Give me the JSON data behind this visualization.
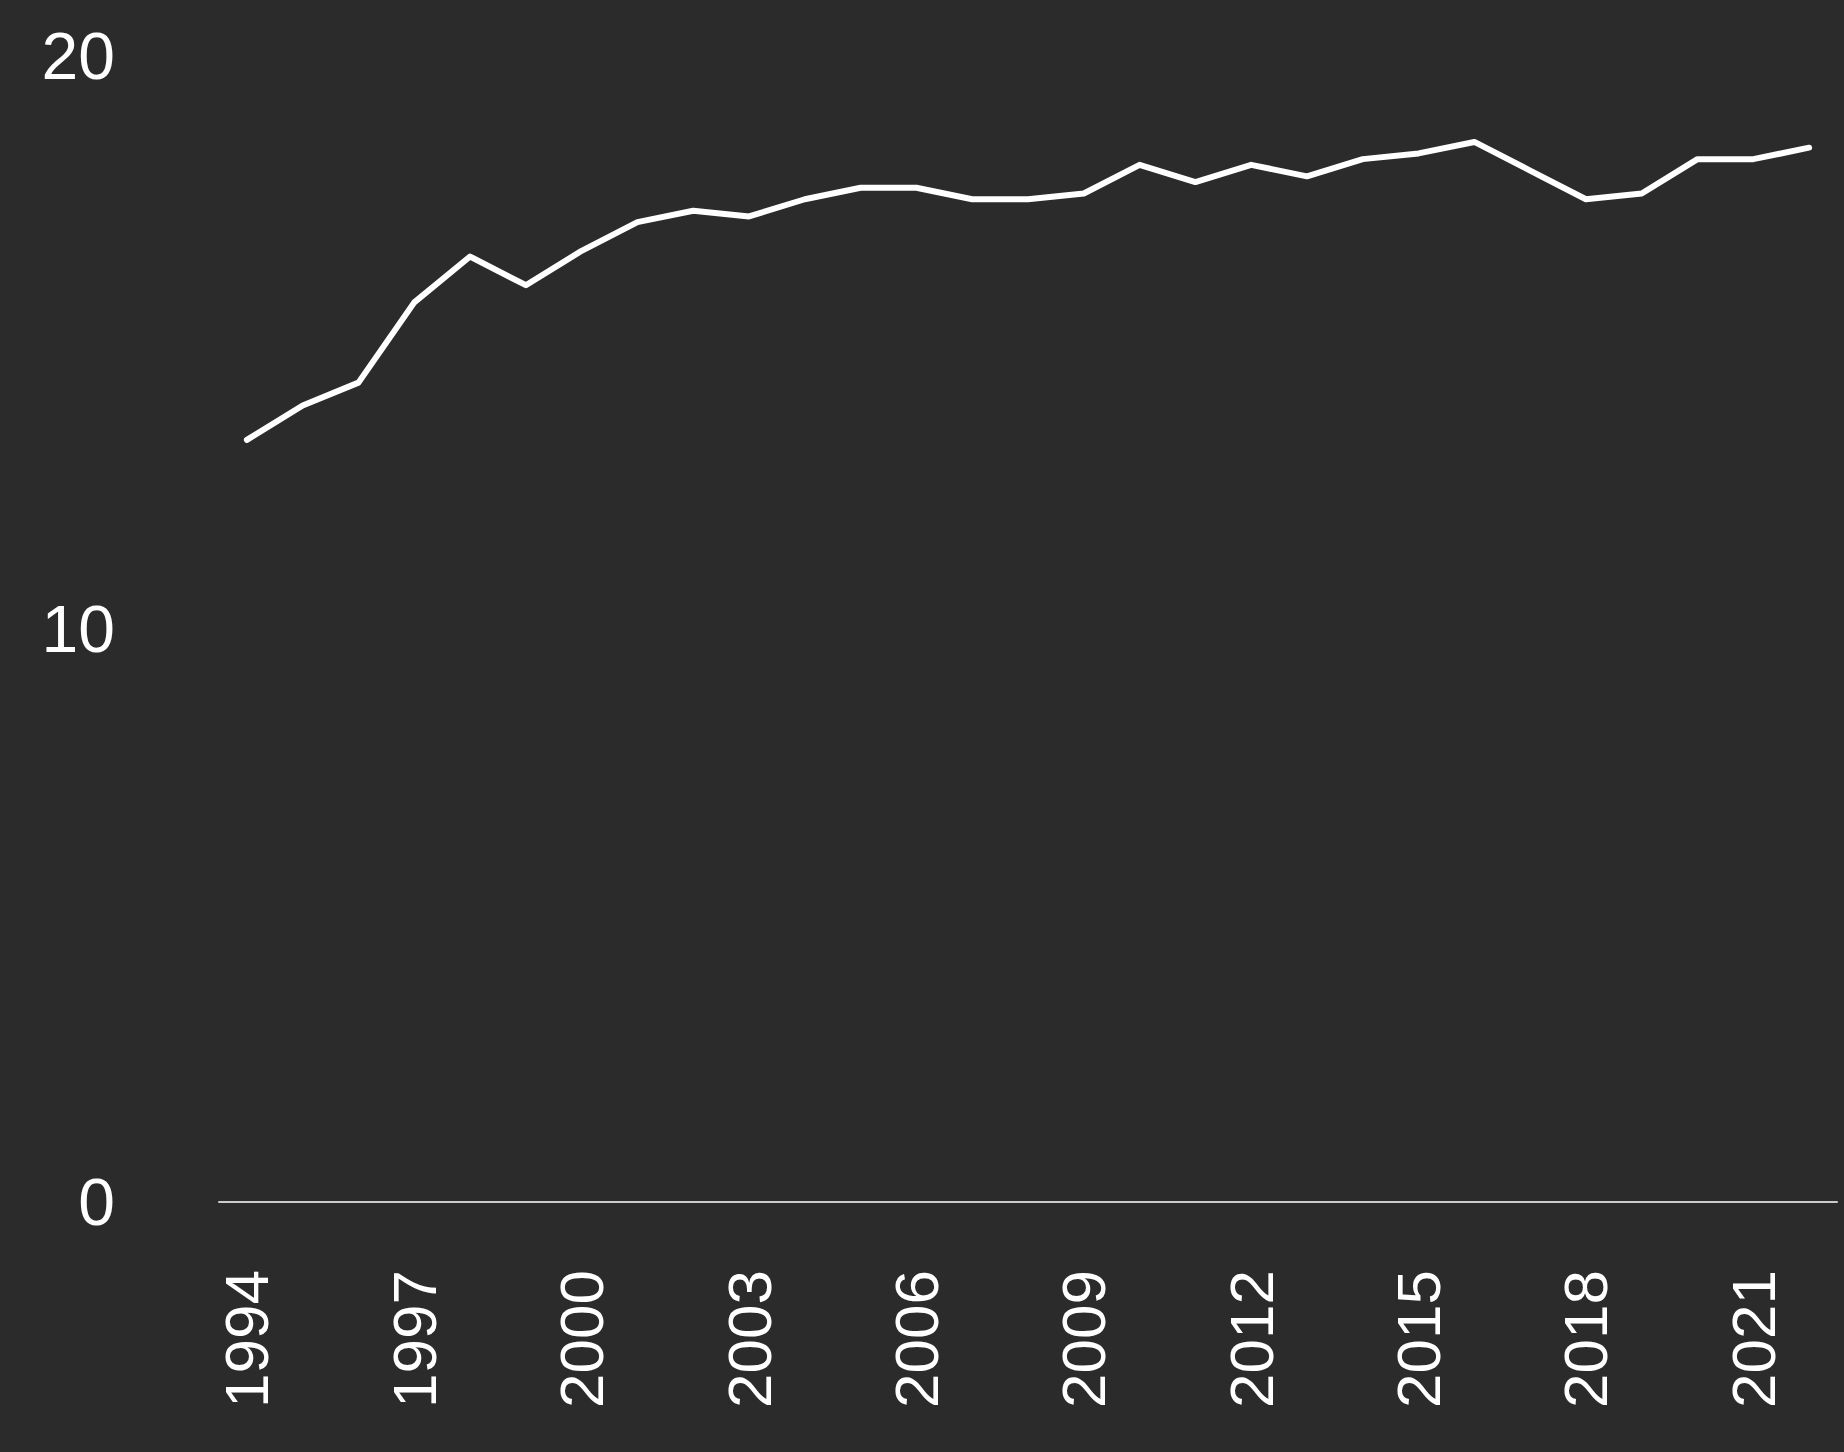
{
  "chart_data": {
    "type": "line",
    "x": [
      1994,
      1995,
      1996,
      1997,
      1998,
      1999,
      2000,
      2001,
      2002,
      2003,
      2004,
      2005,
      2006,
      2007,
      2008,
      2009,
      2010,
      2011,
      2012,
      2013,
      2014,
      2015,
      2016,
      2017,
      2018,
      2019,
      2020,
      2021,
      2022
    ],
    "series": [
      {
        "color": "#ffffff",
        "values": [
          13.3,
          13.9,
          14.3,
          15.7,
          16.5,
          16.0,
          16.6,
          17.1,
          17.3,
          17.2,
          17.5,
          17.7,
          17.7,
          17.5,
          17.5,
          17.6,
          18.1,
          17.8,
          18.1,
          17.9,
          18.2,
          18.3,
          18.5,
          18.0,
          17.5,
          17.6,
          18.2,
          18.2,
          18.4
        ]
      }
    ],
    "xlim": [
      1993.5,
      2022.5
    ],
    "xticks": [
      1994,
      1997,
      2000,
      2003,
      2006,
      2009,
      2012,
      2015,
      2018,
      2021
    ],
    "ylim": [
      0,
      20
    ],
    "yticks": [
      0,
      10,
      20
    ],
    "grid": false,
    "marker": "none",
    "line_style": "solid"
  }
}
